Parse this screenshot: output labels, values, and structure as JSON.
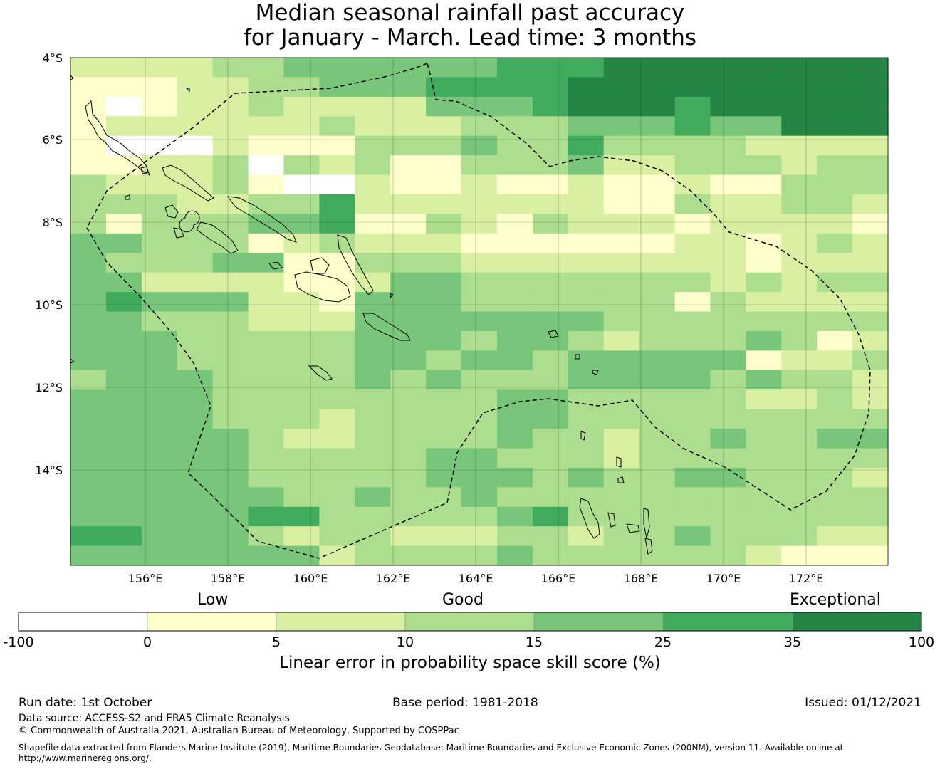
{
  "title": {
    "line1": "Median seasonal rainfall past accuracy",
    "line2": "for January - March. Lead time: 3 months"
  },
  "map": {
    "lat_labels": [
      "4°S",
      "6°S",
      "8°S",
      "10°S",
      "12°S",
      "14°S"
    ],
    "lon_labels": [
      "156°E",
      "158°E",
      "160°E",
      "162°E",
      "164°E",
      "166°E",
      "168°E",
      "170°E",
      "172°E"
    ],
    "extent": {
      "lon_min": 154.2,
      "lon_max": 174.0,
      "lat_north": -4.0,
      "lat_south": -16.3
    },
    "grid_rows": [
      "22223344444455566666666",
      "11122334445555666666666",
      "10122322224445666566666",
      "12222223222333444544666",
      "10002111333433533332222",
      "11223032311333422333233",
      "32223100211211211211333",
      "33322335222222211322332",
      "31333445113213222122221",
      "44333123222111111221232",
      "43334411333222222221222",
      "44222211244333333323233",
      "45444221444333333132222",
      "44333222444444433333333",
      "44433333444344323334312",
      "44433333443443444441223",
      "34443333434333444434332",
      "44443333333344333332232",
      "44443332333344333333333",
      "44444322333343323343344",
      "44444333334433323333333",
      "44444333334443433443332",
      "44444433433433333333333",
      "44444553333345333333333",
      "55444323322233233433322",
      "44444442333343333332111"
    ],
    "colors": [
      "#ffffff",
      "#ffffcc",
      "#d9f0a3",
      "#addd8e",
      "#78c679",
      "#41ab5d",
      "#238443"
    ]
  },
  "colorbar": {
    "categories": [
      "Low",
      "Good",
      "Exceptional"
    ],
    "ticks": [
      "-100",
      "0",
      "5",
      "10",
      "15",
      "25",
      "35",
      "100"
    ],
    "colors": [
      "#ffffff",
      "#ffffcc",
      "#d9f0a3",
      "#addd8e",
      "#78c679",
      "#41ab5d",
      "#238443"
    ],
    "label": "Linear error in probability space skill score (%)"
  },
  "footer": {
    "run_date": "Run date: 1st October",
    "base_period": "Base period: 1981-2018",
    "issued": "Issued: 01/12/2021",
    "data_source": "Data source: ACCESS-S2 and ERA5 Climate Reanalysis",
    "copyright": "© Commonwealth of Australia 2021, Australian Bureau of Meteorology, Supported by COSPPac",
    "shapefile_line1": "Shapefile data extracted from Flanders Marine Institute (2019), Maritime Boundaries Geodatabase: Maritime Boundaries and Exclusive Economic Zones (200NM), version 11. Available online at",
    "shapefile_line2": "http://www.marineregions.org/."
  }
}
